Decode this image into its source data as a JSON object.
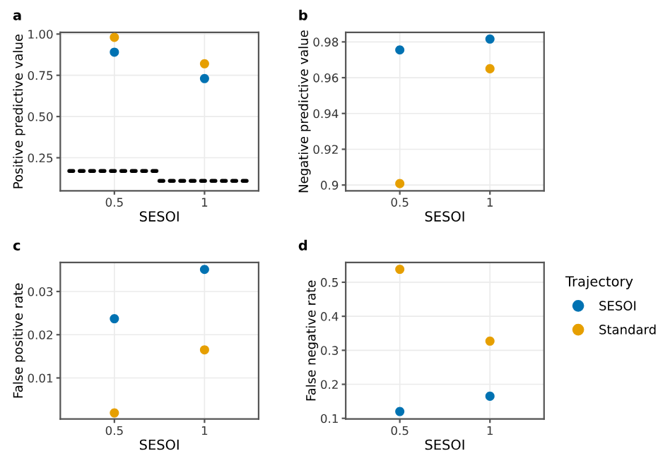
{
  "chart_data": [
    {
      "type": "scatter",
      "title": "a",
      "xlabel": "SESOI",
      "ylabel": "Positive predictive value",
      "xlim": [
        0.2,
        1.3
      ],
      "xticks": [
        0.5,
        1
      ],
      "ylim": [
        0.05,
        1.01
      ],
      "yticks": [
        {
          "value": 0.25,
          "label": "0.25"
        },
        {
          "value": 0.5,
          "label": "0.50"
        },
        {
          "value": 0.75,
          "label": "0.75"
        },
        {
          "value": 1.0,
          "label": "1.00"
        }
      ],
      "grid": true,
      "marker": "circle",
      "series": [
        {
          "color": "#0072b2",
          "x": [
            0.5,
            1
          ],
          "values": [
            0.89,
            0.73
          ]
        },
        {
          "color": "#e69f00",
          "x": [
            0.5,
            1
          ],
          "values": [
            0.98,
            0.82
          ]
        },
        {
          "type": "line",
          "color": "#000000",
          "line_style": "dotted",
          "marker": "none",
          "x": [
            0.25,
            0.75
          ],
          "values": [
            0.17,
            0.17
          ]
        },
        {
          "type": "line",
          "color": "#000000",
          "line_style": "dotted",
          "marker": "none",
          "x": [
            0.75,
            1.25
          ],
          "values": [
            0.11,
            0.11
          ]
        }
      ]
    },
    {
      "type": "scatter",
      "title": "b",
      "xlabel": "SESOI",
      "ylabel": "Negative predictive value",
      "xlim": [
        0.2,
        1.3
      ],
      "xticks": [
        0.5,
        1
      ],
      "ylim": [
        0.8968,
        0.9853
      ],
      "yticks": [
        0.9,
        0.92,
        0.94,
        0.96,
        0.98
      ],
      "grid": true,
      "marker": "circle",
      "series": [
        {
          "color": "#0072b2",
          "x": [
            0.5,
            1
          ],
          "values": [
            0.9755,
            0.9816
          ]
        },
        {
          "color": "#e69f00",
          "x": [
            0.5,
            1
          ],
          "values": [
            0.9008,
            0.965
          ]
        }
      ]
    },
    {
      "type": "scatter",
      "title": "c",
      "xlabel": "SESOI",
      "ylabel": "False positive rate",
      "xlim": [
        0.2,
        1.3
      ],
      "xticks": [
        0.5,
        1
      ],
      "ylim": [
        0.0005,
        0.0367
      ],
      "yticks": [
        0.01,
        0.02,
        0.03
      ],
      "grid": true,
      "marker": "circle",
      "series": [
        {
          "color": "#0072b2",
          "x": [
            0.5,
            1
          ],
          "values": [
            0.0237,
            0.0351
          ]
        },
        {
          "color": "#e69f00",
          "x": [
            0.5,
            1
          ],
          "values": [
            0.0019,
            0.0165
          ]
        }
      ]
    },
    {
      "type": "scatter",
      "title": "d",
      "xlabel": "SESOI",
      "ylabel": "False negative rate",
      "xlim": [
        0.2,
        1.3
      ],
      "xticks": [
        0.5,
        1
      ],
      "ylim": [
        0.098,
        0.558
      ],
      "yticks": [
        0.1,
        0.2,
        0.3,
        0.4,
        0.5
      ],
      "grid": true,
      "marker": "circle",
      "legend": "right",
      "legend_title": "Trajectory",
      "series": [
        {
          "name": "SESOI",
          "color": "#0072b2",
          "x": [
            0.5,
            1
          ],
          "values": [
            0.12,
            0.165
          ]
        },
        {
          "name": "Standard",
          "color": "#e69f00",
          "x": [
            0.5,
            1
          ],
          "values": [
            0.538,
            0.327
          ]
        }
      ]
    }
  ]
}
